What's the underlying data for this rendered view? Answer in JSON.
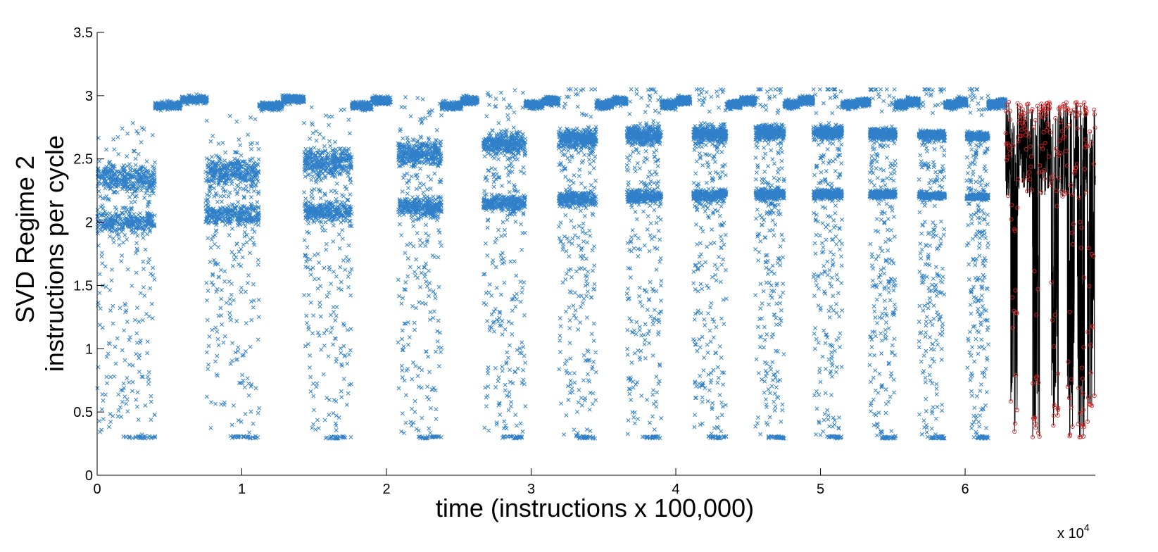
{
  "chart_data": {
    "type": "scatter",
    "title": "",
    "ylabel_lines": [
      "SVD Regime 2",
      "instructions per cycle"
    ],
    "xlabel": "time (instructions x 100,000)",
    "x_multiplier_base": "x 10",
    "x_multiplier_exp": "4",
    "xlim": [
      0,
      6.9
    ],
    "ylim": [
      0,
      3.5
    ],
    "x_ticks": [
      0,
      1,
      2,
      3,
      4,
      5,
      6
    ],
    "x_tick_labels": [
      "0",
      "1",
      "2",
      "3",
      "4",
      "5",
      "6"
    ],
    "y_ticks": [
      0,
      0.5,
      1,
      1.5,
      2,
      2.5,
      3,
      3.5
    ],
    "y_tick_labels": [
      "0",
      "0.5",
      "1",
      "1.5",
      "2",
      "2.5",
      "3",
      "3.5"
    ],
    "grid": false,
    "colors": {
      "scatter": "#2f80c8",
      "trace_line": "#000000",
      "trace_marker": "#e02020"
    },
    "series": [
      {
        "marker": "x",
        "description_points": "blue x markers forming repeating phases; each phase has a low-IPC scatter cloud, two dense bands and a high plateau",
        "phases": [
          {
            "x_start": 0.0,
            "x_end": 0.4,
            "band_upper": 2.35,
            "band_lower": 2.0,
            "plateau_x": [
              0.4,
              0.58,
              0.76
            ],
            "plateau_y": [
              2.92,
              2.97
            ]
          },
          {
            "x_start": 0.75,
            "x_end": 1.12,
            "band_upper": 2.4,
            "band_lower": 2.05,
            "plateau_x": [
              1.12,
              1.28,
              1.43
            ],
            "plateau_y": [
              2.92,
              2.97
            ]
          },
          {
            "x_start": 1.43,
            "x_end": 1.76,
            "band_upper": 2.48,
            "band_lower": 2.08,
            "plateau_x": [
              1.76,
              1.9,
              2.03
            ],
            "plateau_y": [
              2.92,
              2.96
            ]
          },
          {
            "x_start": 2.08,
            "x_end": 2.38,
            "band_upper": 2.55,
            "band_lower": 2.12,
            "plateau_x": [
              2.38,
              2.52,
              2.63
            ],
            "plateau_y": [
              2.92,
              2.96
            ]
          },
          {
            "x_start": 2.67,
            "x_end": 2.96,
            "band_upper": 2.62,
            "band_lower": 2.15,
            "plateau_x": [
              2.96,
              3.08,
              3.19
            ],
            "plateau_y": [
              2.93,
              2.96
            ]
          },
          {
            "x_start": 3.19,
            "x_end": 3.45,
            "band_upper": 2.66,
            "band_lower": 2.18,
            "plateau_x": [
              3.45,
              3.56,
              3.66
            ],
            "plateau_y": [
              2.93,
              2.96
            ]
          },
          {
            "x_start": 3.66,
            "x_end": 3.9,
            "band_upper": 2.69,
            "band_lower": 2.2,
            "plateau_x": [
              3.9,
              4.0,
              4.1
            ],
            "plateau_y": [
              2.93,
              2.96
            ]
          },
          {
            "x_start": 4.12,
            "x_end": 4.35,
            "band_upper": 2.7,
            "band_lower": 2.21,
            "plateau_x": [
              4.35,
              4.45,
              4.55
            ],
            "plateau_y": [
              2.93,
              2.96
            ]
          },
          {
            "x_start": 4.55,
            "x_end": 4.75,
            "band_upper": 2.71,
            "band_lower": 2.22,
            "plateau_x": [
              4.75,
              4.85,
              4.95
            ],
            "plateau_y": [
              2.93,
              2.96
            ]
          },
          {
            "x_start": 4.95,
            "x_end": 5.15,
            "band_upper": 2.71,
            "band_lower": 2.22,
            "plateau_x": [
              5.15,
              5.25,
              5.34
            ],
            "plateau_y": [
              2.93,
              2.95
            ]
          },
          {
            "x_start": 5.34,
            "x_end": 5.52,
            "band_upper": 2.7,
            "band_lower": 2.22,
            "plateau_x": [
              5.52,
              5.6,
              5.68
            ],
            "plateau_y": [
              2.93,
              2.95
            ]
          },
          {
            "x_start": 5.68,
            "x_end": 5.86,
            "band_upper": 2.69,
            "band_lower": 2.21,
            "plateau_x": [
              5.86,
              5.94,
              6.01
            ],
            "plateau_y": [
              2.93,
              2.95
            ]
          },
          {
            "x_start": 6.01,
            "x_end": 6.16,
            "band_upper": 2.68,
            "band_lower": 2.2,
            "plateau_x": [
              6.16,
              6.22,
              6.28
            ],
            "plateau_y": [
              2.93,
              2.94
            ]
          }
        ]
      },
      {
        "marker": "o",
        "line": true,
        "description_points": "dense black line with red circle markers oscillating between ~0.3 and ~2.95 from x=6.28 to x=6.9",
        "x_range": [
          6.28,
          6.9
        ],
        "y_range": [
          0.3,
          2.95
        ],
        "dense_clusters_x": [
          6.34,
          6.49,
          6.62,
          6.73,
          6.8,
          6.87
        ]
      }
    ]
  }
}
